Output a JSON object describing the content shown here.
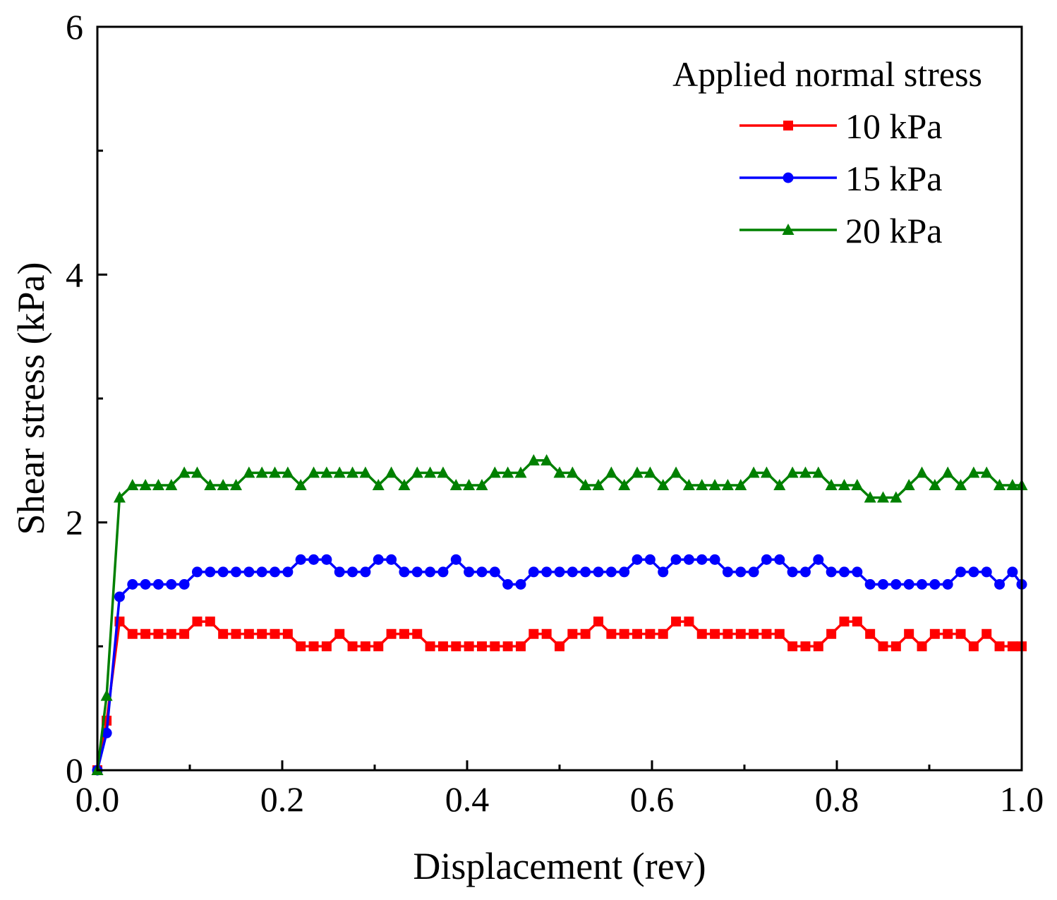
{
  "chart_data": {
    "type": "line",
    "title": "",
    "xlabel": "Displacement (rev)",
    "ylabel": "Shear stress (kPa)",
    "xlim": [
      0,
      1
    ],
    "ylim": [
      0,
      6
    ],
    "grid": false,
    "x_ticks": [
      "0.0",
      "0.2",
      "0.4",
      "0.6",
      "0.8",
      "1.0"
    ],
    "y_ticks": [
      "0",
      "2",
      "4",
      "6"
    ],
    "legend": {
      "title": "Applied normal stress",
      "placement": "top-right"
    },
    "x": [
      0.0,
      0.01,
      0.024,
      0.038,
      0.052,
      0.066,
      0.08,
      0.094,
      0.108,
      0.122,
      0.136,
      0.15,
      0.164,
      0.178,
      0.192,
      0.206,
      0.22,
      0.234,
      0.248,
      0.262,
      0.276,
      0.29,
      0.304,
      0.318,
      0.332,
      0.346,
      0.36,
      0.374,
      0.388,
      0.402,
      0.416,
      0.43,
      0.444,
      0.458,
      0.472,
      0.486,
      0.5,
      0.514,
      0.528,
      0.542,
      0.556,
      0.57,
      0.584,
      0.598,
      0.612,
      0.626,
      0.64,
      0.654,
      0.668,
      0.682,
      0.696,
      0.71,
      0.724,
      0.738,
      0.752,
      0.766,
      0.78,
      0.794,
      0.808,
      0.822,
      0.836,
      0.85,
      0.864,
      0.878,
      0.892,
      0.906,
      0.92,
      0.934,
      0.948,
      0.962,
      0.976,
      0.99,
      1.0
    ],
    "series": [
      {
        "name": "10 kPa",
        "color": "#ff0000",
        "marker": "square",
        "values": [
          0.0,
          0.4,
          1.2,
          1.1,
          1.1,
          1.1,
          1.1,
          1.1,
          1.2,
          1.2,
          1.1,
          1.1,
          1.1,
          1.1,
          1.1,
          1.1,
          1.0,
          1.0,
          1.0,
          1.1,
          1.0,
          1.0,
          1.0,
          1.1,
          1.1,
          1.1,
          1.0,
          1.0,
          1.0,
          1.0,
          1.0,
          1.0,
          1.0,
          1.0,
          1.1,
          1.1,
          1.0,
          1.1,
          1.1,
          1.2,
          1.1,
          1.1,
          1.1,
          1.1,
          1.1,
          1.2,
          1.2,
          1.1,
          1.1,
          1.1,
          1.1,
          1.1,
          1.1,
          1.1,
          1.0,
          1.0,
          1.0,
          1.1,
          1.2,
          1.2,
          1.1,
          1.0,
          1.0,
          1.1,
          1.0,
          1.1,
          1.1,
          1.1,
          1.0,
          1.1,
          1.0,
          1.0,
          1.0
        ]
      },
      {
        "name": "15 kPa",
        "color": "#0000ff",
        "marker": "circle",
        "values": [
          0.0,
          0.3,
          1.4,
          1.5,
          1.5,
          1.5,
          1.5,
          1.5,
          1.6,
          1.6,
          1.6,
          1.6,
          1.6,
          1.6,
          1.6,
          1.6,
          1.7,
          1.7,
          1.7,
          1.6,
          1.6,
          1.6,
          1.7,
          1.7,
          1.6,
          1.6,
          1.6,
          1.6,
          1.7,
          1.6,
          1.6,
          1.6,
          1.5,
          1.5,
          1.6,
          1.6,
          1.6,
          1.6,
          1.6,
          1.6,
          1.6,
          1.6,
          1.7,
          1.7,
          1.6,
          1.7,
          1.7,
          1.7,
          1.7,
          1.6,
          1.6,
          1.6,
          1.7,
          1.7,
          1.6,
          1.6,
          1.7,
          1.6,
          1.6,
          1.6,
          1.5,
          1.5,
          1.5,
          1.5,
          1.5,
          1.5,
          1.5,
          1.6,
          1.6,
          1.6,
          1.5,
          1.6,
          1.5
        ]
      },
      {
        "name": "20 kPa",
        "color": "#008000",
        "marker": "triangle",
        "values": [
          0.0,
          0.6,
          2.2,
          2.3,
          2.3,
          2.3,
          2.3,
          2.4,
          2.4,
          2.3,
          2.3,
          2.3,
          2.4,
          2.4,
          2.4,
          2.4,
          2.3,
          2.4,
          2.4,
          2.4,
          2.4,
          2.4,
          2.3,
          2.4,
          2.3,
          2.4,
          2.4,
          2.4,
          2.3,
          2.3,
          2.3,
          2.4,
          2.4,
          2.4,
          2.5,
          2.5,
          2.4,
          2.4,
          2.3,
          2.3,
          2.4,
          2.3,
          2.4,
          2.4,
          2.3,
          2.4,
          2.3,
          2.3,
          2.3,
          2.3,
          2.3,
          2.4,
          2.4,
          2.3,
          2.4,
          2.4,
          2.4,
          2.3,
          2.3,
          2.3,
          2.2,
          2.2,
          2.2,
          2.3,
          2.4,
          2.3,
          2.4,
          2.3,
          2.4,
          2.4,
          2.3,
          2.3,
          2.3
        ]
      }
    ]
  }
}
